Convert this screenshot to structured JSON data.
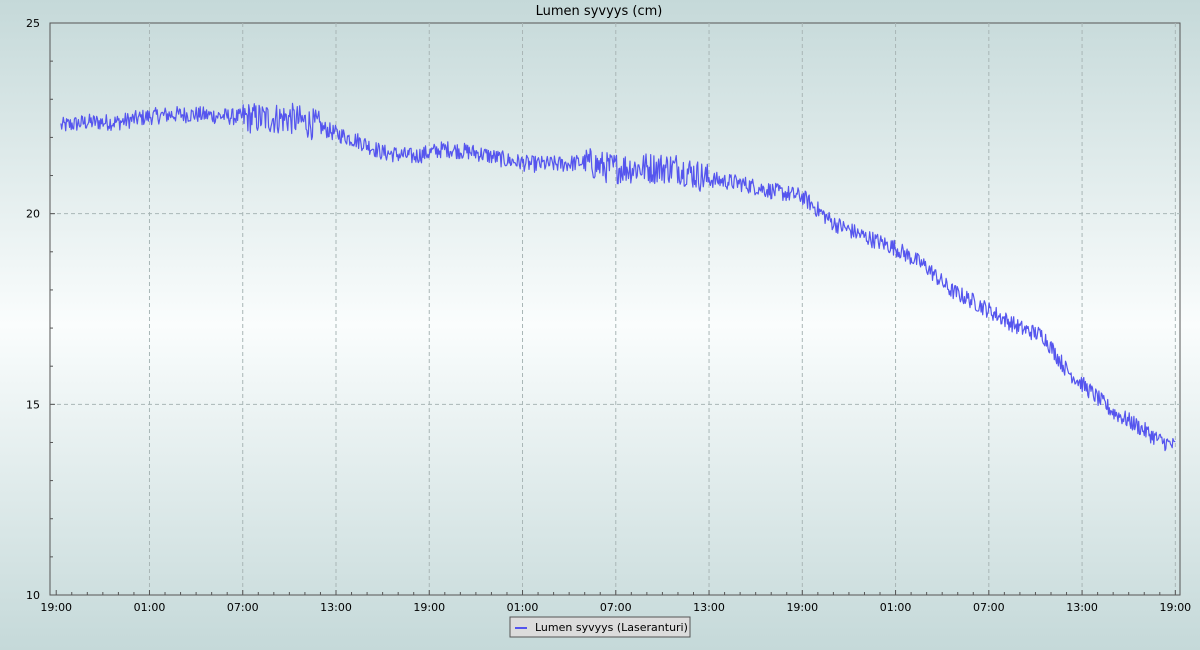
{
  "chart_data": {
    "type": "line",
    "title": "Lumen syvyys (cm)",
    "xlabel": "",
    "ylabel": "",
    "x_tick_labels": [
      "19:00",
      "01:00",
      "07:00",
      "13:00",
      "19:00",
      "01:00",
      "07:00",
      "13:00",
      "19:00",
      "01:00",
      "07:00",
      "13:00",
      "19:00"
    ],
    "x_unit": "hours since first tick (19:00)",
    "x_range": [
      -0.4,
      72.3
    ],
    "y_tick_labels": [
      "10",
      "15",
      "20",
      "25"
    ],
    "ylim": [
      10,
      25
    ],
    "grid": true,
    "legend_position": "bottom-center",
    "series": [
      {
        "name": "Lumen syvyys (Laseranturi)",
        "color": "#5555ee",
        "noise": 0.22,
        "x": [
          0.3,
          2,
          4,
          6,
          7.5,
          9,
          11,
          13,
          15,
          16.5,
          18,
          19.5,
          21,
          23,
          25,
          27,
          29,
          30.5,
          31,
          32.5,
          34,
          35.5,
          37,
          38.5,
          40,
          42,
          44,
          46,
          48,
          50,
          52,
          54,
          56,
          57.5,
          59,
          60.5,
          62,
          63.5,
          65,
          66.5,
          68,
          69.5,
          71,
          72
        ],
        "y": [
          22.3,
          22.4,
          22.4,
          22.55,
          22.6,
          22.6,
          22.55,
          22.5,
          22.5,
          22.35,
          22.1,
          21.9,
          21.6,
          21.5,
          21.7,
          21.6,
          21.4,
          21.3,
          21.3,
          21.3,
          21.35,
          21.2,
          21.2,
          21.2,
          21.2,
          20.9,
          20.8,
          20.6,
          20.45,
          19.75,
          19.4,
          19.1,
          18.6,
          18.0,
          17.7,
          17.35,
          17.0,
          16.8,
          15.9,
          15.35,
          14.8,
          14.45,
          14.05,
          13.9
        ]
      }
    ]
  },
  "colors": {
    "background_edge": "#c8dcdc",
    "background_center": "#fafdfd",
    "grid": "#a9b6b6",
    "line": "#5555ee"
  }
}
